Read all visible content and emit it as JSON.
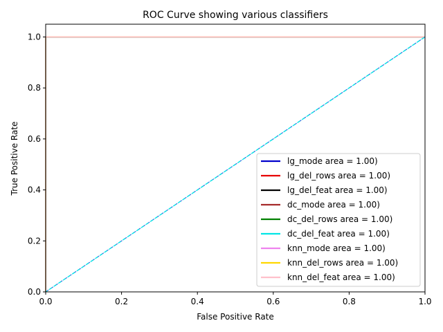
{
  "chart_data": {
    "type": "line",
    "title": "ROC Curve showing various classifiers",
    "xlabel": "False Positive Rate",
    "ylabel": "True Positive Rate",
    "xlim": [
      0.0,
      1.0
    ],
    "ylim": [
      0.0,
      1.05
    ],
    "x_ticks": [
      "0.0",
      "0.2",
      "0.4",
      "0.6",
      "0.8",
      "1.0"
    ],
    "y_ticks": [
      "0.0",
      "0.2",
      "0.4",
      "0.6",
      "0.8",
      "1.0"
    ],
    "grid": false,
    "legend_position": "lower right",
    "series": [
      {
        "name": "lg_mode area = 1.00)",
        "color": "#0000cc",
        "x": [
          0,
          0,
          1
        ],
        "y": [
          0,
          1,
          1
        ]
      },
      {
        "name": "lg_del_rows area = 1.00)",
        "color": "#e60000",
        "x": [
          0,
          0,
          1
        ],
        "y": [
          0,
          1,
          1
        ]
      },
      {
        "name": "lg_del_feat area = 1.00)",
        "color": "#000000",
        "x": [
          0,
          0,
          1
        ],
        "y": [
          0,
          1,
          1
        ]
      },
      {
        "name": "dc_mode area = 1.00)",
        "color": "#a52a2a",
        "x": [
          0,
          0,
          1
        ],
        "y": [
          0,
          1,
          1
        ]
      },
      {
        "name": "dc_del_rows area = 1.00)",
        "color": "#008000",
        "x": [
          0,
          0,
          1
        ],
        "y": [
          0,
          1,
          1
        ]
      },
      {
        "name": "dc_del_feat area = 1.00)",
        "color": "#00e5e5",
        "x": [
          0,
          0,
          1
        ],
        "y": [
          0,
          1,
          1
        ]
      },
      {
        "name": "knn_mode area = 1.00)",
        "color": "#ee82ee",
        "x": [
          0,
          0,
          1
        ],
        "y": [
          0,
          1,
          1
        ]
      },
      {
        "name": "knn_del_rows area = 1.00)",
        "color": "#ffd700",
        "x": [
          0,
          0,
          1
        ],
        "y": [
          0,
          1,
          1
        ]
      },
      {
        "name": "knn_del_feat area = 1.00)",
        "color": "#ffc0cb",
        "x": [
          0,
          0,
          1
        ],
        "y": [
          0,
          1,
          1
        ]
      }
    ],
    "reference_line": {
      "x": [
        0,
        1
      ],
      "y": [
        0,
        1
      ],
      "style": "dashed",
      "colors": [
        "#4169e1",
        "#00e5e5"
      ]
    }
  }
}
